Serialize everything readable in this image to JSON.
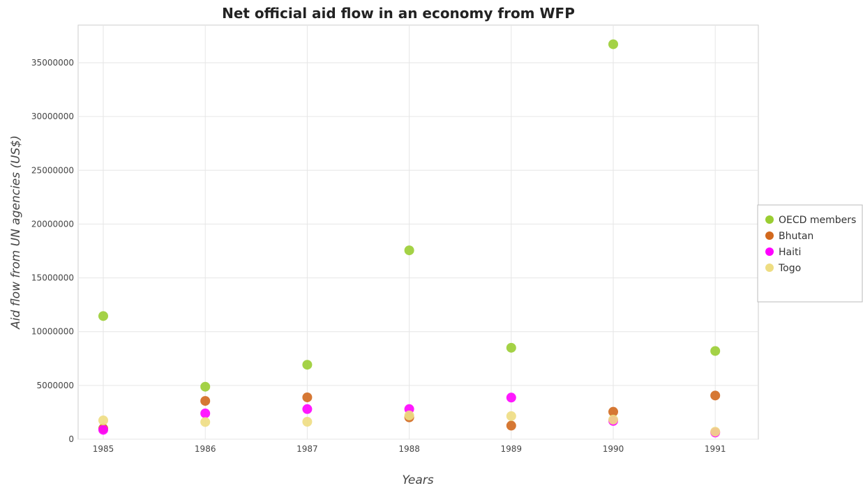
{
  "chart_data": {
    "type": "scatter",
    "title": "Net official aid flow in an economy from WFP",
    "xlabel": "Years",
    "ylabel": "Aid flow from UN agencies (US$)",
    "categories": [
      "1985",
      "1986",
      "1987",
      "1988",
      "1989",
      "1990",
      "1991"
    ],
    "ylim": [
      0,
      38500000
    ],
    "yticks": [
      0,
      5000000,
      10000000,
      15000000,
      20000000,
      25000000,
      30000000,
      35000000
    ],
    "ytick_labels": [
      "0",
      "5000000",
      "10000000",
      "15000000",
      "20000000",
      "25000000",
      "30000000",
      "35000000"
    ],
    "grid": true,
    "legend_position": "right",
    "series": [
      {
        "name": "OECD members",
        "color": "#9acd32",
        "values": [
          11450000,
          4880000,
          6920000,
          17560000,
          8500000,
          36720000,
          8200000
        ]
      },
      {
        "name": "Bhutan",
        "color": "#d2691e",
        "values": [
          1000000,
          3560000,
          3890000,
          2030000,
          1260000,
          2550000,
          4060000
        ]
      },
      {
        "name": "Haiti",
        "color": "#ff00ff",
        "values": [
          870000,
          2400000,
          2800000,
          2800000,
          3870000,
          1700000,
          620000
        ]
      },
      {
        "name": "Togo",
        "color": "#eedd82",
        "values": [
          1750000,
          1600000,
          1620000,
          2210000,
          2150000,
          1820000,
          700000
        ]
      }
    ]
  }
}
